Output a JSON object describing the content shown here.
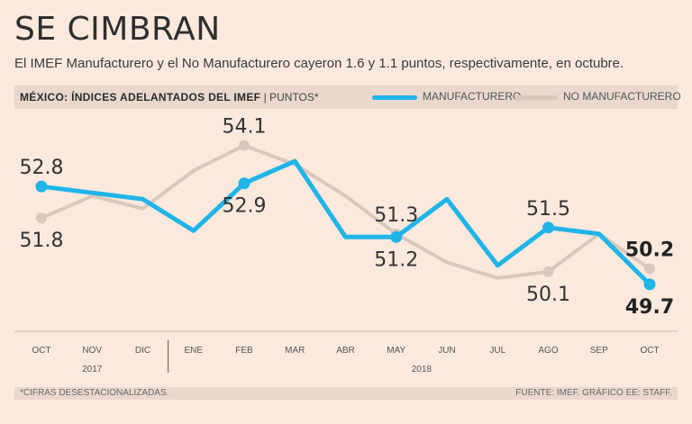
{
  "header": {
    "title": "SE CIMBRAN",
    "subtitle": "El IMEF Manufacturero y el No Manufacturero cayeron 1.6 y 1.1 puntos, respectivamente, en octubre."
  },
  "chart_header": {
    "label_bold": "MÉXICO: ÍNDICES ADELANTADOS DEL IMEF",
    "label_unit": "| PUNTOS*"
  },
  "footer": {
    "note": "*CIFRAS DESESTACIONALIZADAS.",
    "source": "FUENTE: IMEF. GRÁFICO EE: STAFF."
  },
  "colors": {
    "background": "#fbe9dd",
    "manufacturero": "#1fb5e8",
    "no_manufacturero": "#d9c9bc"
  },
  "chart_data": {
    "type": "line",
    "title": "MÉXICO: ÍNDICES ADELANTADOS DEL IMEF",
    "ylabel": "PUNTOS*",
    "categories": [
      "OCT",
      "NOV",
      "DIC",
      "ENE",
      "FEB",
      "MAR",
      "ABR",
      "MAY",
      "JUN",
      "JUL",
      "AGO",
      "SEP",
      "OCT"
    ],
    "years": [
      {
        "label": "2017",
        "from": 0,
        "to": 2
      },
      {
        "label": "2018",
        "from": 3,
        "to": 12
      }
    ],
    "ylim": [
      48.5,
      55.0
    ],
    "series": [
      {
        "name": "MANUFACTURERO",
        "values": [
          52.8,
          52.6,
          52.4,
          51.4,
          52.9,
          53.6,
          51.2,
          51.2,
          52.4,
          50.3,
          51.5,
          51.3,
          49.7
        ],
        "labels": [
          {
            "index": 0,
            "text": "52.8",
            "pos": "above",
            "bold": false
          },
          {
            "index": 4,
            "text": "52.9",
            "pos": "below",
            "bold": false
          },
          {
            "index": 7,
            "text": "51.2",
            "pos": "below",
            "bold": false
          },
          {
            "index": 10,
            "text": "51.5",
            "pos": "above",
            "bold": false
          },
          {
            "index": 12,
            "text": "49.7",
            "pos": "below",
            "bold": true
          }
        ],
        "markers": [
          0,
          4,
          7,
          10,
          12
        ]
      },
      {
        "name": "NO MANUFACTURERO",
        "values": [
          51.8,
          52.5,
          52.1,
          53.3,
          54.1,
          53.5,
          52.5,
          51.3,
          50.4,
          49.9,
          50.1,
          51.3,
          50.2
        ],
        "labels": [
          {
            "index": 0,
            "text": "51.8",
            "pos": "below",
            "bold": false
          },
          {
            "index": 4,
            "text": "54.1",
            "pos": "above",
            "bold": false
          },
          {
            "index": 7,
            "text": "51.3",
            "pos": "above",
            "bold": false
          },
          {
            "index": 10,
            "text": "50.1",
            "pos": "below",
            "bold": false
          },
          {
            "index": 12,
            "text": "50.2",
            "pos": "above",
            "bold": true
          }
        ],
        "markers": [
          0,
          4,
          7,
          10,
          12
        ]
      }
    ]
  }
}
